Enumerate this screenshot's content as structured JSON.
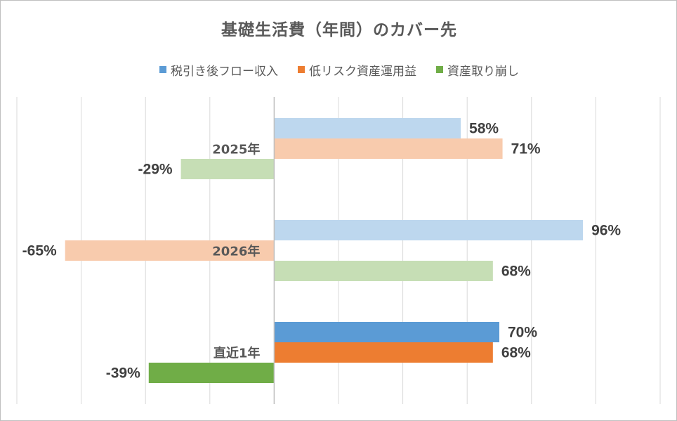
{
  "chart_data": {
    "type": "bar",
    "orientation": "horizontal",
    "title": "基礎生活費（年間）のカバー先",
    "categories": [
      "2025年",
      "2026年",
      "直近1年"
    ],
    "series": [
      {
        "name": "税引き後フロー収入",
        "values": [
          58,
          96,
          70
        ],
        "value_labels": [
          "58%",
          "96%",
          "70%"
        ],
        "color": "#5b9bd5"
      },
      {
        "name": "低リスク資産運用益",
        "values": [
          71,
          -65,
          68
        ],
        "value_labels": [
          "71%",
          "-65%",
          "68%"
        ],
        "color": "#ed7d31"
      },
      {
        "name": "資産取り崩し",
        "values": [
          -29,
          68,
          -39
        ],
        "value_labels": [
          "-29%",
          "68%",
          "-39%"
        ],
        "color": "#70ad47"
      }
    ],
    "faded_categories": [
      "2025年",
      "2026年"
    ],
    "xlim": [
      -80,
      120
    ],
    "gridline_step": 20,
    "legend_position": "top",
    "grid": true,
    "xlabel": "",
    "ylabel": ""
  }
}
